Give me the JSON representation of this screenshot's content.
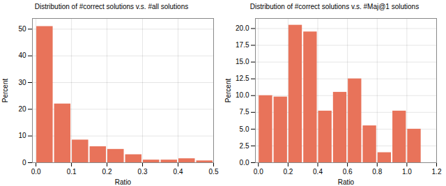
{
  "chart_data": [
    {
      "type": "histogram",
      "title": "Distribution of #correct solutions v.s. #all solutions",
      "xlabel": "Ratio",
      "ylabel": "Percent",
      "bins": [
        0.0,
        0.05,
        0.1,
        0.15,
        0.2,
        0.25,
        0.3,
        0.35,
        0.4,
        0.45,
        0.5
      ],
      "values": [
        51.0,
        22.0,
        8.5,
        6.0,
        5.0,
        3.0,
        1.0,
        1.0,
        1.5,
        0.7
      ],
      "color": "#E8735A",
      "xlim": [
        -0.01,
        0.5
      ],
      "xticks": [
        {
          "value": 0,
          "label": "0.0"
        },
        0.1,
        0.2,
        0.3,
        0.4,
        0.5
      ],
      "ylim": [
        0,
        54
      ],
      "yticks": [
        0,
        10,
        20,
        30,
        40,
        50
      ],
      "grid": true
    },
    {
      "type": "histogram",
      "title": "Distribution of #correct solutions v.s. #Maj@1 solutions",
      "xlabel": "Ratio",
      "ylabel": "Percent",
      "bins": [
        0.0,
        0.1,
        0.2,
        0.3,
        0.4,
        0.5,
        0.6,
        0.7,
        0.8,
        0.9,
        1.0,
        1.1
      ],
      "values": [
        10.0,
        9.8,
        20.5,
        19.5,
        7.7,
        10.5,
        12.5,
        5.5,
        1.5,
        7.7,
        5.0
      ],
      "color": "#E8735A",
      "xlim": [
        -0.02,
        1.2
      ],
      "xticks": [
        {
          "value": 0,
          "label": "0.0"
        },
        0.2,
        0.4,
        0.6,
        0.8,
        {
          "value": 1,
          "label": "1.0"
        },
        1.2
      ],
      "ylim": [
        0,
        21.5
      ],
      "yticks": [
        {
          "value": 0,
          "label": "0.0"
        },
        2.5,
        {
          "value": 5,
          "label": "5.0"
        },
        7.5,
        {
          "value": 10,
          "label": "10.0"
        },
        12.5,
        {
          "value": 15,
          "label": "15.0"
        },
        17.5,
        {
          "value": 20,
          "label": "20.0"
        }
      ],
      "grid": true
    }
  ]
}
